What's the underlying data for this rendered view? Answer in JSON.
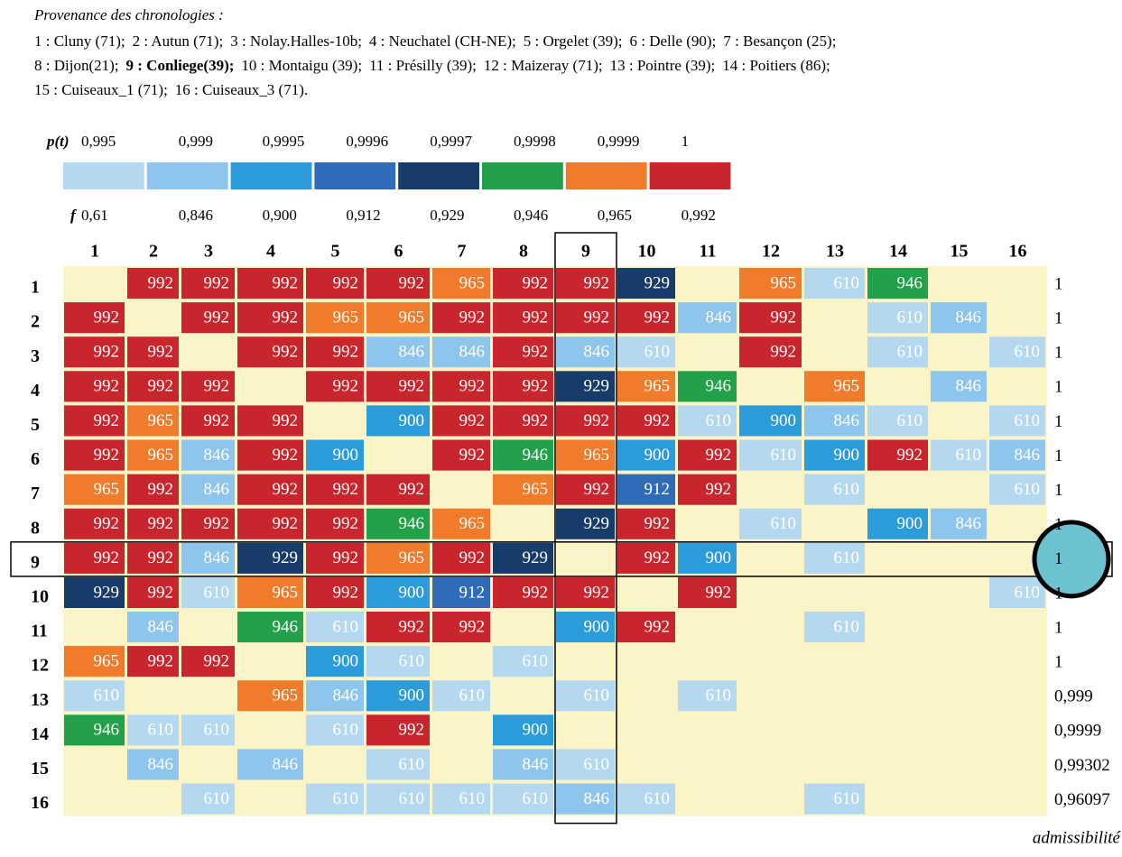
{
  "provenance": {
    "title": "Provenance des chronologies :",
    "bold_item": [
      1,
      1
    ],
    "lines": [
      [
        "1 : Cluny (71);",
        "2 : Autun (71);",
        "3 : Nolay.Halles-10b;",
        "4 : Neuchatel (CH-NE);",
        "5 : Orgelet (39);",
        "6 : Delle (90);",
        "7 : Besançon (25);"
      ],
      [
        "8 : Dijon(21);",
        "9 : Conliege(39);",
        "10 : Montaigu (39);",
        "11 : Présilly (39);",
        "12 : Maizeray (71);",
        "13 : Pointre (39);",
        "14 : Poitiers (86);"
      ],
      [
        "15 : Cuiseaux_1 (71);",
        "16 : Cuiseaux_3 (71)."
      ]
    ]
  },
  "legend": {
    "p_label": "p(t)",
    "f_label": "f",
    "p": [
      "0,995",
      "0,999",
      "0,9995",
      "0,9996",
      "0,9997",
      "0,9998",
      "0,9999",
      "1"
    ],
    "f": [
      "0,61",
      "0,846",
      "0,900",
      "0,912",
      "0,929",
      "0,946",
      "0,965",
      "0,992"
    ],
    "colors": [
      "#b5d8f1",
      "#8ec5ec",
      "#2c9bd9",
      "#2f6cb8",
      "#173c69",
      "#22a04a",
      "#ef7b2b",
      "#c9252c"
    ]
  },
  "cell_colors": {
    "610": "#b5d8f1",
    "846": "#8ec5ec",
    "900": "#2c9bd9",
    "912": "#2f6cb8",
    "929": "#173c69",
    "946": "#22a04a",
    "965": "#ef7b2b",
    "992": "#c9252c"
  },
  "matrix": {
    "columns": [
      "1",
      "2",
      "3",
      "4",
      "5",
      "6",
      "7",
      "8",
      "9",
      "10",
      "11",
      "12",
      "13",
      "14",
      "15",
      "16"
    ],
    "admissibility_label": "admissibilité",
    "rows": [
      {
        "label": "1",
        "adm": "1",
        "cells": [
          null,
          "992",
          "992",
          "992",
          "992",
          "992",
          "965",
          "992",
          "992",
          "929",
          null,
          "965",
          "610",
          "946",
          null,
          null
        ]
      },
      {
        "label": "2",
        "adm": "1",
        "cells": [
          "992",
          null,
          "992",
          "992",
          "965",
          "965",
          "992",
          "992",
          "992",
          "992",
          "846",
          "992",
          null,
          "610",
          "846",
          null
        ]
      },
      {
        "label": "3",
        "adm": "1",
        "cells": [
          "992",
          "992",
          null,
          "992",
          "992",
          "846",
          "846",
          "992",
          "846",
          "610",
          null,
          "992",
          null,
          "610",
          null,
          "610"
        ]
      },
      {
        "label": "4",
        "adm": "1",
        "cells": [
          "992",
          "992",
          "992",
          null,
          "992",
          "992",
          "992",
          "992",
          "929",
          "965",
          "946",
          null,
          "965",
          null,
          "846",
          null
        ]
      },
      {
        "label": "5",
        "adm": "1",
        "cells": [
          "992",
          "965",
          "992",
          "992",
          null,
          "900",
          "992",
          "992",
          "992",
          "992",
          "610",
          "900",
          "846",
          "610",
          null,
          "610"
        ]
      },
      {
        "label": "6",
        "adm": "1",
        "cells": [
          "992",
          "965",
          "846",
          "992",
          "900",
          null,
          "992",
          "946",
          "965",
          "900",
          "992",
          "610",
          "900",
          "992",
          "610",
          "846"
        ]
      },
      {
        "label": "7",
        "adm": "1",
        "cells": [
          "965",
          "992",
          "846",
          "992",
          "992",
          "992",
          null,
          "965",
          "992",
          "912",
          "992",
          null,
          "610",
          null,
          null,
          "610"
        ]
      },
      {
        "label": "8",
        "adm": "1",
        "cells": [
          "992",
          "992",
          "992",
          "992",
          "992",
          "946",
          "965",
          null,
          "929",
          "992",
          null,
          "610",
          null,
          "900",
          "846",
          null
        ]
      },
      {
        "label": "9",
        "adm": "1",
        "cells": [
          "992",
          "992",
          "846",
          "929",
          "992",
          "965",
          "992",
          "929",
          null,
          "992",
          "900",
          null,
          "610",
          null,
          null,
          null
        ]
      },
      {
        "label": "10",
        "adm": "1",
        "cells": [
          "929",
          "992",
          "610",
          "965",
          "992",
          "900",
          "912",
          "992",
          "992",
          null,
          "992",
          null,
          null,
          null,
          null,
          "610"
        ]
      },
      {
        "label": "11",
        "adm": "1",
        "cells": [
          null,
          "846",
          null,
          "946",
          "610",
          "992",
          "992",
          null,
          "900",
          "992",
          null,
          null,
          "610",
          null,
          null,
          null
        ]
      },
      {
        "label": "12",
        "adm": "1",
        "cells": [
          "965",
          "992",
          "992",
          null,
          "900",
          "610",
          null,
          "610",
          null,
          null,
          null,
          null,
          null,
          null,
          null,
          null
        ]
      },
      {
        "label": "13",
        "adm": "0,999",
        "cells": [
          "610",
          null,
          null,
          "965",
          "846",
          "900",
          "610",
          null,
          "610",
          null,
          "610",
          null,
          null,
          null,
          null,
          null
        ]
      },
      {
        "label": "14",
        "adm": "0,9999",
        "cells": [
          "946",
          "610",
          "610",
          null,
          "610",
          "992",
          null,
          "900",
          null,
          null,
          null,
          null,
          null,
          null,
          null,
          null
        ]
      },
      {
        "label": "15",
        "adm": "0,99302",
        "cells": [
          null,
          "846",
          null,
          "846",
          null,
          "610",
          null,
          "846",
          "610",
          null,
          null,
          null,
          null,
          null,
          null,
          null
        ]
      },
      {
        "label": "16",
        "adm": "0,96097",
        "cells": [
          null,
          null,
          "610",
          null,
          "610",
          "610",
          "610",
          "610",
          "846",
          "610",
          null,
          null,
          "610",
          null,
          null,
          null
        ]
      }
    ]
  }
}
